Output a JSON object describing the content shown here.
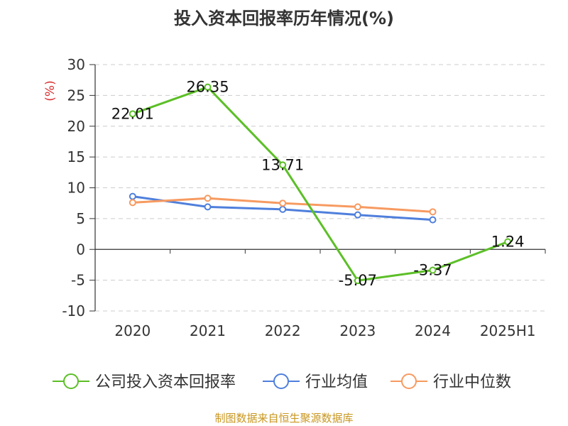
{
  "chart_data": {
    "type": "line",
    "title": "投入资本回报率历年情况(%)",
    "ylabel": "(%)",
    "categories": [
      "2020",
      "2021",
      "2022",
      "2023",
      "2024",
      "2025H1"
    ],
    "ylim": [
      -10,
      30
    ],
    "yticks": [
      -10,
      -5,
      0,
      5,
      10,
      15,
      20,
      25,
      30
    ],
    "grid": true,
    "legend_position": "bottom",
    "series": [
      {
        "name": "公司投入资本回报率",
        "color": "#5cbf27",
        "values": [
          22.01,
          26.35,
          13.71,
          -5.07,
          -3.37,
          1.24
        ],
        "labels": [
          "22.01",
          "26.35",
          "13.71",
          "-5.07",
          "-3.37",
          "1.24"
        ]
      },
      {
        "name": "行业均值",
        "color": "#4f7fdc",
        "values": [
          8.6,
          6.9,
          6.5,
          5.6,
          4.8,
          null
        ]
      },
      {
        "name": "行业中位数",
        "color": "#f79a60",
        "values": [
          7.6,
          8.3,
          7.5,
          6.9,
          6.1,
          null
        ]
      }
    ]
  },
  "footer": "制图数据来自恒生聚源数据库"
}
